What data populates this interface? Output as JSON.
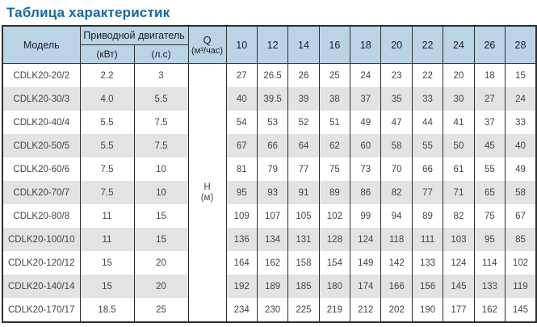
{
  "page_title": "Таблица характеристик",
  "colors": {
    "title_blue": "#17689c",
    "header_background": "#bad4e6",
    "stripe_gray": "#e3e3e3",
    "border": "#2f2f2f"
  },
  "table": {
    "header": {
      "model": "Модель",
      "motor_group": "Приводной двигатель",
      "motor_kw": "(кВт)",
      "motor_hp": "(л.с)",
      "q_line1": "Q",
      "q_line2": "(м³/час)",
      "flow_columns": [
        "10",
        "12",
        "14",
        "16",
        "18",
        "20",
        "22",
        "24",
        "26",
        "28"
      ]
    },
    "head_label": {
      "line1": "Н",
      "line2": "(м)"
    },
    "rows": [
      {
        "model": "CDLK20-20/2",
        "kw": "2.2",
        "hp": "3",
        "heads": [
          "27",
          "26.5",
          "26",
          "25",
          "24",
          "23",
          "22",
          "20",
          "18",
          "15"
        ]
      },
      {
        "model": "CDLK20-30/3",
        "kw": "4.0",
        "hp": "5.5",
        "heads": [
          "40",
          "39.5",
          "39",
          "38",
          "37",
          "35",
          "33",
          "30",
          "27",
          "24"
        ]
      },
      {
        "model": "CDLK20-40/4",
        "kw": "5.5",
        "hp": "7.5",
        "heads": [
          "54",
          "53",
          "52",
          "51",
          "49",
          "47",
          "44",
          "41",
          "37",
          "33"
        ]
      },
      {
        "model": "CDLK20-50/5",
        "kw": "5.5",
        "hp": "7.5",
        "heads": [
          "67",
          "66",
          "64",
          "62",
          "60",
          "58",
          "55",
          "50",
          "45",
          "40"
        ]
      },
      {
        "model": "CDLK20-60/6",
        "kw": "7.5",
        "hp": "10",
        "heads": [
          "81",
          "79",
          "77",
          "75",
          "73",
          "70",
          "66",
          "61",
          "55",
          "49"
        ]
      },
      {
        "model": "CDLK20-70/7",
        "kw": "7.5",
        "hp": "10",
        "heads": [
          "95",
          "93",
          "91",
          "89",
          "86",
          "82",
          "77",
          "71",
          "65",
          "58"
        ]
      },
      {
        "model": "CDLK20-80/8",
        "kw": "11",
        "hp": "15",
        "heads": [
          "109",
          "107",
          "105",
          "102",
          "99",
          "94",
          "89",
          "82",
          "75",
          "67"
        ]
      },
      {
        "model": "CDLK20-100/10",
        "kw": "11",
        "hp": "15",
        "heads": [
          "136",
          "134",
          "131",
          "128",
          "124",
          "118",
          "111",
          "103",
          "95",
          "85"
        ]
      },
      {
        "model": "CDLK20-120/12",
        "kw": "15",
        "hp": "20",
        "heads": [
          "164",
          "162",
          "158",
          "154",
          "149",
          "142",
          "133",
          "124",
          "114",
          "102"
        ]
      },
      {
        "model": "CDLK20-140/14",
        "kw": "15",
        "hp": "20",
        "heads": [
          "192",
          "189",
          "185",
          "180",
          "174",
          "166",
          "156",
          "145",
          "133",
          "119"
        ]
      },
      {
        "model": "CDLK20-170/17",
        "kw": "18.5",
        "hp": "25",
        "heads": [
          "234",
          "230",
          "225",
          "219",
          "212",
          "202",
          "190",
          "177",
          "162",
          "145"
        ]
      }
    ]
  }
}
